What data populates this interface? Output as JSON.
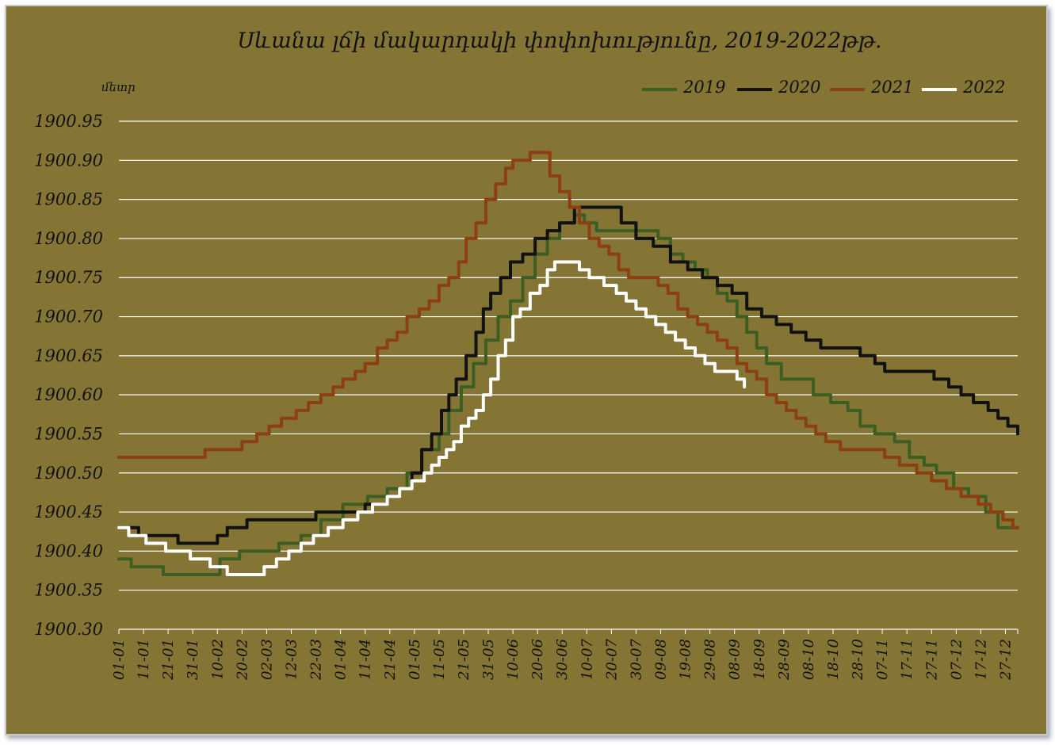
{
  "chart_data": {
    "type": "line",
    "title": "Սևանա լճի մակարդակի փոփոխությունը, 2019-2022թթ.",
    "ylabel": "մետր",
    "xlabel": "",
    "ylim": [
      1900.3,
      1900.95
    ],
    "ytick_labels": [
      "1900.95",
      "1900.90",
      "1900.85",
      "1900.80",
      "1900.75",
      "1900.70",
      "1900.65",
      "1900.60",
      "1900.55",
      "1900.50",
      "1900.45",
      "1900.40",
      "1900.35",
      "1900.30"
    ],
    "x_ticks": [
      "01-01",
      "11-01",
      "21-01",
      "31-01",
      "10-02",
      "20-02",
      "02-03",
      "12-03",
      "22-03",
      "01-04",
      "11-04",
      "21-04",
      "01-05",
      "11-05",
      "21-05",
      "31-05",
      "10-06",
      "20-06",
      "30-06",
      "10-07",
      "20-07",
      "30-07",
      "09-08",
      "19-08",
      "29-08",
      "08-09",
      "18-09",
      "28-09",
      "08-10",
      "18-10",
      "28-10",
      "07-11",
      "17-11",
      "27-11",
      "07-12",
      "17-12",
      "27-12"
    ],
    "grid": "horizontal",
    "legend_position": "top-right",
    "x_day_range": [
      1,
      366
    ],
    "series": [
      {
        "name": "2019",
        "color": "#3d5e22",
        "points": [
          [
            1,
            1900.39
          ],
          [
            6,
            1900.38
          ],
          [
            19,
            1900.37
          ],
          [
            36,
            1900.37
          ],
          [
            42,
            1900.39
          ],
          [
            50,
            1900.4
          ],
          [
            63,
            1900.4
          ],
          [
            66,
            1900.41
          ],
          [
            75,
            1900.42
          ],
          [
            83,
            1900.44
          ],
          [
            92,
            1900.46
          ],
          [
            102,
            1900.47
          ],
          [
            110,
            1900.48
          ],
          [
            118,
            1900.5
          ],
          [
            124,
            1900.53
          ],
          [
            131,
            1900.55
          ],
          [
            135,
            1900.58
          ],
          [
            140,
            1900.61
          ],
          [
            145,
            1900.64
          ],
          [
            150,
            1900.67
          ],
          [
            155,
            1900.7
          ],
          [
            160,
            1900.72
          ],
          [
            165,
            1900.75
          ],
          [
            170,
            1900.78
          ],
          [
            175,
            1900.8
          ],
          [
            180,
            1900.82
          ],
          [
            186,
            1900.83
          ],
          [
            190,
            1900.82
          ],
          [
            195,
            1900.81
          ],
          [
            200,
            1900.81
          ],
          [
            210,
            1900.81
          ],
          [
            215,
            1900.81
          ],
          [
            220,
            1900.8
          ],
          [
            225,
            1900.78
          ],
          [
            230,
            1900.77
          ],
          [
            235,
            1900.76
          ],
          [
            240,
            1900.75
          ],
          [
            244,
            1900.73
          ],
          [
            248,
            1900.72
          ],
          [
            252,
            1900.7
          ],
          [
            256,
            1900.68
          ],
          [
            260,
            1900.66
          ],
          [
            264,
            1900.64
          ],
          [
            270,
            1900.62
          ],
          [
            276,
            1900.62
          ],
          [
            283,
            1900.6
          ],
          [
            290,
            1900.59
          ],
          [
            297,
            1900.58
          ],
          [
            302,
            1900.56
          ],
          [
            308,
            1900.55
          ],
          [
            316,
            1900.54
          ],
          [
            322,
            1900.52
          ],
          [
            328,
            1900.51
          ],
          [
            333,
            1900.5
          ],
          [
            340,
            1900.48
          ],
          [
            346,
            1900.47
          ],
          [
            353,
            1900.45
          ],
          [
            358,
            1900.43
          ],
          [
            366,
            1900.43
          ]
        ]
      },
      {
        "name": "2020",
        "color": "#111111",
        "points": [
          [
            1,
            1900.43
          ],
          [
            9,
            1900.42
          ],
          [
            25,
            1900.41
          ],
          [
            41,
            1900.42
          ],
          [
            45,
            1900.43
          ],
          [
            53,
            1900.44
          ],
          [
            70,
            1900.44
          ],
          [
            81,
            1900.45
          ],
          [
            95,
            1900.45
          ],
          [
            101,
            1900.46
          ],
          [
            110,
            1900.47
          ],
          [
            115,
            1900.48
          ],
          [
            120,
            1900.5
          ],
          [
            124,
            1900.53
          ],
          [
            128,
            1900.55
          ],
          [
            132,
            1900.58
          ],
          [
            135,
            1900.6
          ],
          [
            138,
            1900.62
          ],
          [
            142,
            1900.65
          ],
          [
            146,
            1900.68
          ],
          [
            149,
            1900.71
          ],
          [
            152,
            1900.73
          ],
          [
            156,
            1900.75
          ],
          [
            160,
            1900.77
          ],
          [
            165,
            1900.78
          ],
          [
            170,
            1900.8
          ],
          [
            175,
            1900.81
          ],
          [
            180,
            1900.82
          ],
          [
            186,
            1900.84
          ],
          [
            194,
            1900.84
          ],
          [
            198,
            1900.84
          ],
          [
            205,
            1900.82
          ],
          [
            211,
            1900.8
          ],
          [
            218,
            1900.79
          ],
          [
            225,
            1900.77
          ],
          [
            232,
            1900.76
          ],
          [
            238,
            1900.75
          ],
          [
            244,
            1900.74
          ],
          [
            250,
            1900.73
          ],
          [
            256,
            1900.71
          ],
          [
            262,
            1900.7
          ],
          [
            268,
            1900.69
          ],
          [
            274,
            1900.68
          ],
          [
            280,
            1900.67
          ],
          [
            286,
            1900.66
          ],
          [
            296,
            1900.66
          ],
          [
            302,
            1900.65
          ],
          [
            308,
            1900.64
          ],
          [
            312,
            1900.63
          ],
          [
            328,
            1900.63
          ],
          [
            332,
            1900.62
          ],
          [
            338,
            1900.61
          ],
          [
            343,
            1900.6
          ],
          [
            348,
            1900.59
          ],
          [
            354,
            1900.58
          ],
          [
            358,
            1900.57
          ],
          [
            362,
            1900.56
          ],
          [
            366,
            1900.55
          ]
        ]
      },
      {
        "name": "2021",
        "color": "#8b3f12",
        "points": [
          [
            1,
            1900.52
          ],
          [
            35,
            1900.52
          ],
          [
            36,
            1900.53
          ],
          [
            49,
            1900.53
          ],
          [
            51,
            1900.54
          ],
          [
            57,
            1900.55
          ],
          [
            62,
            1900.56
          ],
          [
            67,
            1900.57
          ],
          [
            73,
            1900.58
          ],
          [
            78,
            1900.59
          ],
          [
            83,
            1900.6
          ],
          [
            88,
            1900.61
          ],
          [
            92,
            1900.62
          ],
          [
            97,
            1900.63
          ],
          [
            101,
            1900.64
          ],
          [
            106,
            1900.66
          ],
          [
            110,
            1900.67
          ],
          [
            114,
            1900.68
          ],
          [
            118,
            1900.7
          ],
          [
            123,
            1900.71
          ],
          [
            127,
            1900.72
          ],
          [
            131,
            1900.74
          ],
          [
            135,
            1900.75
          ],
          [
            139,
            1900.77
          ],
          [
            142,
            1900.8
          ],
          [
            146,
            1900.82
          ],
          [
            150,
            1900.85
          ],
          [
            154,
            1900.87
          ],
          [
            158,
            1900.89
          ],
          [
            161,
            1900.9
          ],
          [
            165,
            1900.9
          ],
          [
            168,
            1900.91
          ],
          [
            172,
            1900.91
          ],
          [
            176,
            1900.88
          ],
          [
            180,
            1900.86
          ],
          [
            184,
            1900.84
          ],
          [
            188,
            1900.82
          ],
          [
            192,
            1900.8
          ],
          [
            196,
            1900.79
          ],
          [
            200,
            1900.78
          ],
          [
            204,
            1900.76
          ],
          [
            208,
            1900.75
          ],
          [
            214,
            1900.75
          ],
          [
            220,
            1900.74
          ],
          [
            224,
            1900.73
          ],
          [
            228,
            1900.71
          ],
          [
            232,
            1900.7
          ],
          [
            236,
            1900.69
          ],
          [
            240,
            1900.68
          ],
          [
            244,
            1900.67
          ],
          [
            248,
            1900.66
          ],
          [
            252,
            1900.64
          ],
          [
            256,
            1900.63
          ],
          [
            260,
            1900.62
          ],
          [
            264,
            1900.6
          ],
          [
            268,
            1900.59
          ],
          [
            272,
            1900.58
          ],
          [
            276,
            1900.57
          ],
          [
            280,
            1900.56
          ],
          [
            284,
            1900.55
          ],
          [
            288,
            1900.54
          ],
          [
            294,
            1900.53
          ],
          [
            305,
            1900.53
          ],
          [
            312,
            1900.52
          ],
          [
            318,
            1900.51
          ],
          [
            325,
            1900.5
          ],
          [
            331,
            1900.49
          ],
          [
            337,
            1900.48
          ],
          [
            343,
            1900.47
          ],
          [
            350,
            1900.46
          ],
          [
            355,
            1900.45
          ],
          [
            360,
            1900.44
          ],
          [
            364,
            1900.43
          ],
          [
            366,
            1900.43
          ]
        ]
      },
      {
        "name": "2022",
        "color": "#ffffff",
        "points": [
          [
            1,
            1900.43
          ],
          [
            5,
            1900.42
          ],
          [
            12,
            1900.41
          ],
          [
            20,
            1900.4
          ],
          [
            30,
            1900.39
          ],
          [
            38,
            1900.38
          ],
          [
            45,
            1900.37
          ],
          [
            57,
            1900.37
          ],
          [
            60,
            1900.38
          ],
          [
            65,
            1900.39
          ],
          [
            70,
            1900.4
          ],
          [
            75,
            1900.41
          ],
          [
            80,
            1900.42
          ],
          [
            86,
            1900.43
          ],
          [
            92,
            1900.44
          ],
          [
            98,
            1900.45
          ],
          [
            104,
            1900.46
          ],
          [
            110,
            1900.47
          ],
          [
            115,
            1900.48
          ],
          [
            120,
            1900.49
          ],
          [
            125,
            1900.5
          ],
          [
            128,
            1900.51
          ],
          [
            131,
            1900.52
          ],
          [
            134,
            1900.53
          ],
          [
            137,
            1900.54
          ],
          [
            140,
            1900.56
          ],
          [
            143,
            1900.57
          ],
          [
            146,
            1900.58
          ],
          [
            149,
            1900.6
          ],
          [
            152,
            1900.62
          ],
          [
            155,
            1900.65
          ],
          [
            158,
            1900.67
          ],
          [
            161,
            1900.7
          ],
          [
            164,
            1900.71
          ],
          [
            168,
            1900.73
          ],
          [
            172,
            1900.74
          ],
          [
            175,
            1900.76
          ],
          [
            178,
            1900.77
          ],
          [
            185,
            1900.77
          ],
          [
            188,
            1900.76
          ],
          [
            192,
            1900.75
          ],
          [
            198,
            1900.74
          ],
          [
            203,
            1900.73
          ],
          [
            207,
            1900.72
          ],
          [
            211,
            1900.71
          ],
          [
            215,
            1900.7
          ],
          [
            219,
            1900.69
          ],
          [
            223,
            1900.68
          ],
          [
            227,
            1900.67
          ],
          [
            231,
            1900.66
          ],
          [
            235,
            1900.65
          ],
          [
            239,
            1900.64
          ],
          [
            243,
            1900.63
          ],
          [
            248,
            1900.63
          ],
          [
            252,
            1900.62
          ],
          [
            255,
            1900.61
          ]
        ]
      }
    ]
  }
}
